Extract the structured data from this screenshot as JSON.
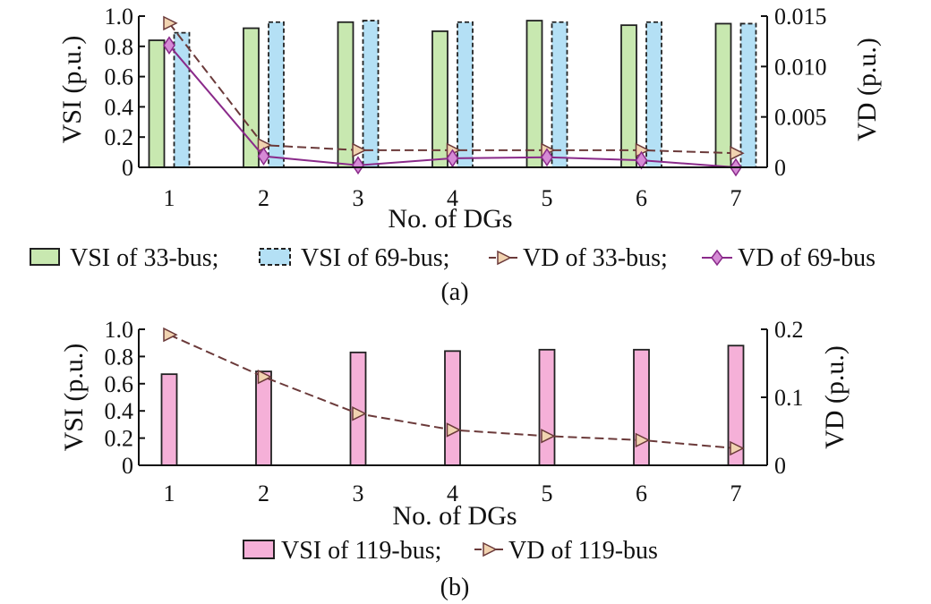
{
  "chart_data": [
    {
      "type": "bar",
      "panel_label": "(a)",
      "xlabel": "No. of DGs",
      "ylabel_left": "VSI (p.u.)",
      "ylabel_right": "VD (p.u.)",
      "categories": [
        "1",
        "2",
        "3",
        "4",
        "5",
        "6",
        "7"
      ],
      "ylim_left": [
        0,
        1.0
      ],
      "yticks_left": [
        "0",
        "0.2",
        "0.4",
        "0.6",
        "0.8",
        "1.0"
      ],
      "ylim_right": [
        0,
        0.015
      ],
      "yticks_right": [
        "0",
        "0.005",
        "0.010",
        "0.015"
      ],
      "series": [
        {
          "name": "VSI of 33-bus",
          "kind": "bar",
          "axis": "left",
          "color": "#c8e8b0",
          "border": "solid",
          "values": [
            0.84,
            0.92,
            0.96,
            0.9,
            0.97,
            0.94,
            0.95
          ]
        },
        {
          "name": "VSI of 69-bus",
          "kind": "bar",
          "axis": "left",
          "color": "#b4e0f5",
          "border": "dashed",
          "values": [
            0.89,
            0.96,
            0.97,
            0.96,
            0.96,
            0.96,
            0.95
          ]
        },
        {
          "name": "VD of 33-bus",
          "kind": "line",
          "axis": "right",
          "color": "#6b3a3a",
          "dash": true,
          "marker": "triangle",
          "values": [
            0.0143,
            0.0022,
            0.0017,
            0.0017,
            0.0017,
            0.0017,
            0.0014
          ]
        },
        {
          "name": "VD of 69-bus",
          "kind": "line",
          "axis": "right",
          "color": "#8a2a8a",
          "dash": false,
          "marker": "diamond",
          "values": [
            0.0121,
            0.0011,
            0.0002,
            0.0009,
            0.001,
            0.0007,
            0.0
          ]
        }
      ],
      "legend_position": "bottom",
      "grid": false
    },
    {
      "type": "bar",
      "panel_label": "(b)",
      "xlabel": "No. of DGs",
      "ylabel_left": "VSI (p.u.)",
      "ylabel_right": "VD (p.u.)",
      "categories": [
        "1",
        "2",
        "3",
        "4",
        "5",
        "6",
        "7"
      ],
      "ylim_left": [
        0,
        1.0
      ],
      "yticks_left": [
        "0",
        "0.2",
        "0.4",
        "0.6",
        "0.8",
        "1.0"
      ],
      "ylim_right": [
        0,
        0.2
      ],
      "yticks_right": [
        "0",
        "0.1",
        "0.2"
      ],
      "series": [
        {
          "name": "VSI of 119-bus",
          "kind": "bar",
          "axis": "left",
          "color": "#f5b0d8",
          "border": "solid",
          "values": [
            0.67,
            0.69,
            0.83,
            0.84,
            0.85,
            0.85,
            0.88
          ]
        },
        {
          "name": "VD of 119-bus",
          "kind": "line",
          "axis": "right",
          "color": "#6b3a3a",
          "dash": true,
          "marker": "triangle",
          "values": [
            0.192,
            0.13,
            0.076,
            0.052,
            0.043,
            0.037,
            0.025
          ]
        }
      ],
      "legend_position": "bottom",
      "grid": false
    }
  ],
  "legend_a": {
    "item1": "VSI of 33-bus;",
    "item2": "VSI of 69-bus;",
    "item3": "VD of 33-bus;",
    "item4": "VD of 69-bus"
  },
  "legend_b": {
    "item1": "VSI of 119-bus;",
    "item2": "VD of 119-bus"
  }
}
